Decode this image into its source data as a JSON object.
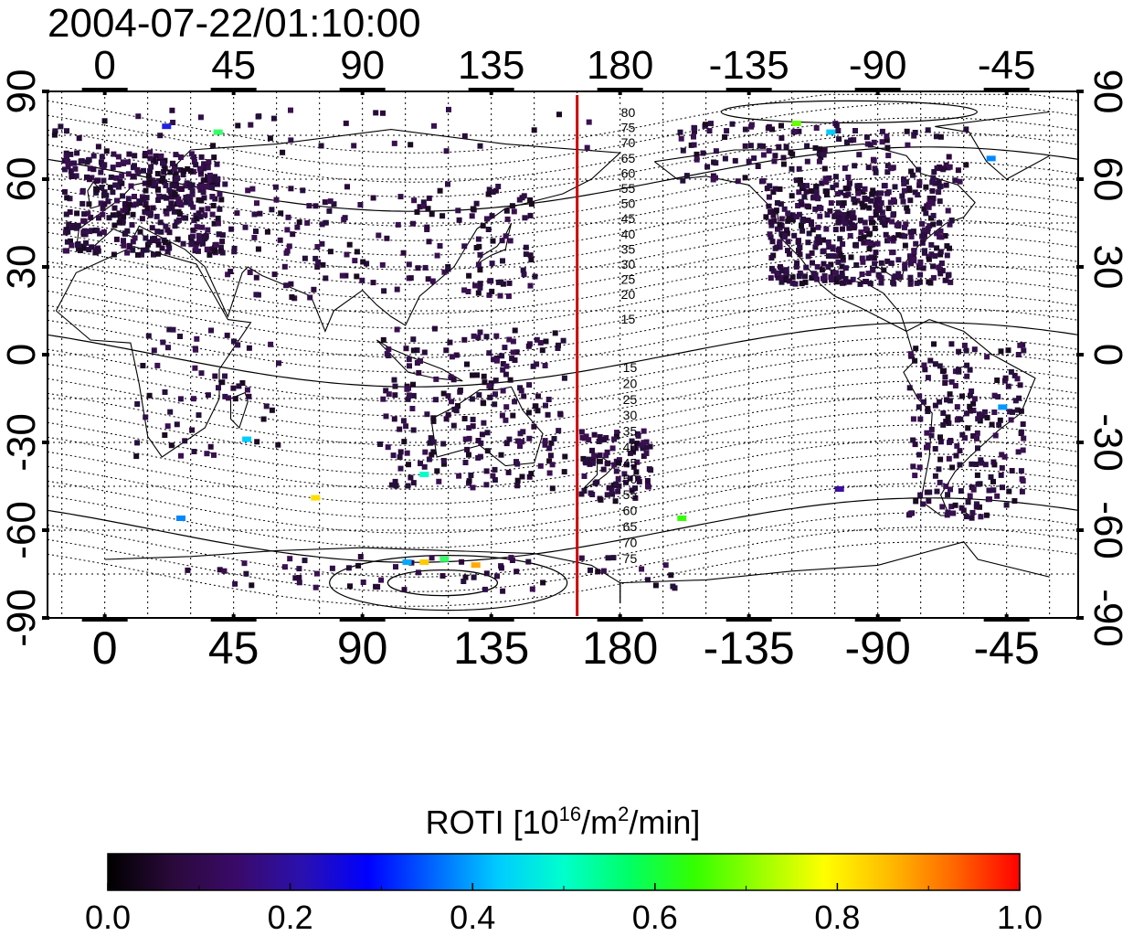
{
  "title": "2004-07-22/01:10:00",
  "x_axis": {
    "ticks": [
      0,
      45,
      90,
      135,
      180,
      -135,
      -90,
      -45
    ],
    "tick_labels": [
      "0",
      "45",
      "90",
      "135",
      "180",
      "-135",
      "-90",
      "-45"
    ]
  },
  "y_axis": {
    "ticks": [
      90,
      60,
      30,
      0,
      -30,
      -60,
      -90
    ],
    "tick_labels": [
      "90",
      "60",
      "30",
      "0",
      "-30",
      "-60",
      "-90"
    ]
  },
  "meridian_marker": {
    "longitude": 165,
    "color": "#cc0000"
  },
  "mlat_labels_north": [
    "80",
    "75",
    "70",
    "65",
    "60",
    "55",
    "50",
    "45",
    "40",
    "35",
    "30",
    "25",
    "20",
    "15"
  ],
  "mlat_labels_south": [
    "15",
    "20",
    "25",
    "30",
    "35",
    "40",
    "45",
    "50",
    "55",
    "60",
    "65",
    "70",
    "75"
  ],
  "colorbar": {
    "label_main": "ROTI  [10",
    "label_sup1": "16",
    "label_mid": "/m",
    "label_sup2": "2",
    "label_end": "/min]",
    "min": 0.0,
    "max": 1.0,
    "tick_labels": [
      "0.0",
      "0.2",
      "0.4",
      "0.6",
      "0.8",
      "1.0"
    ],
    "colors": [
      "#000000",
      "#2a0a3a",
      "#3a0a6a",
      "#2a10b0",
      "#0000ff",
      "#0066ff",
      "#00ccff",
      "#00ffcc",
      "#00ff66",
      "#33ff00",
      "#99ff00",
      "#ffff00",
      "#ffbb00",
      "#ff6600",
      "#ff0000"
    ]
  }
}
